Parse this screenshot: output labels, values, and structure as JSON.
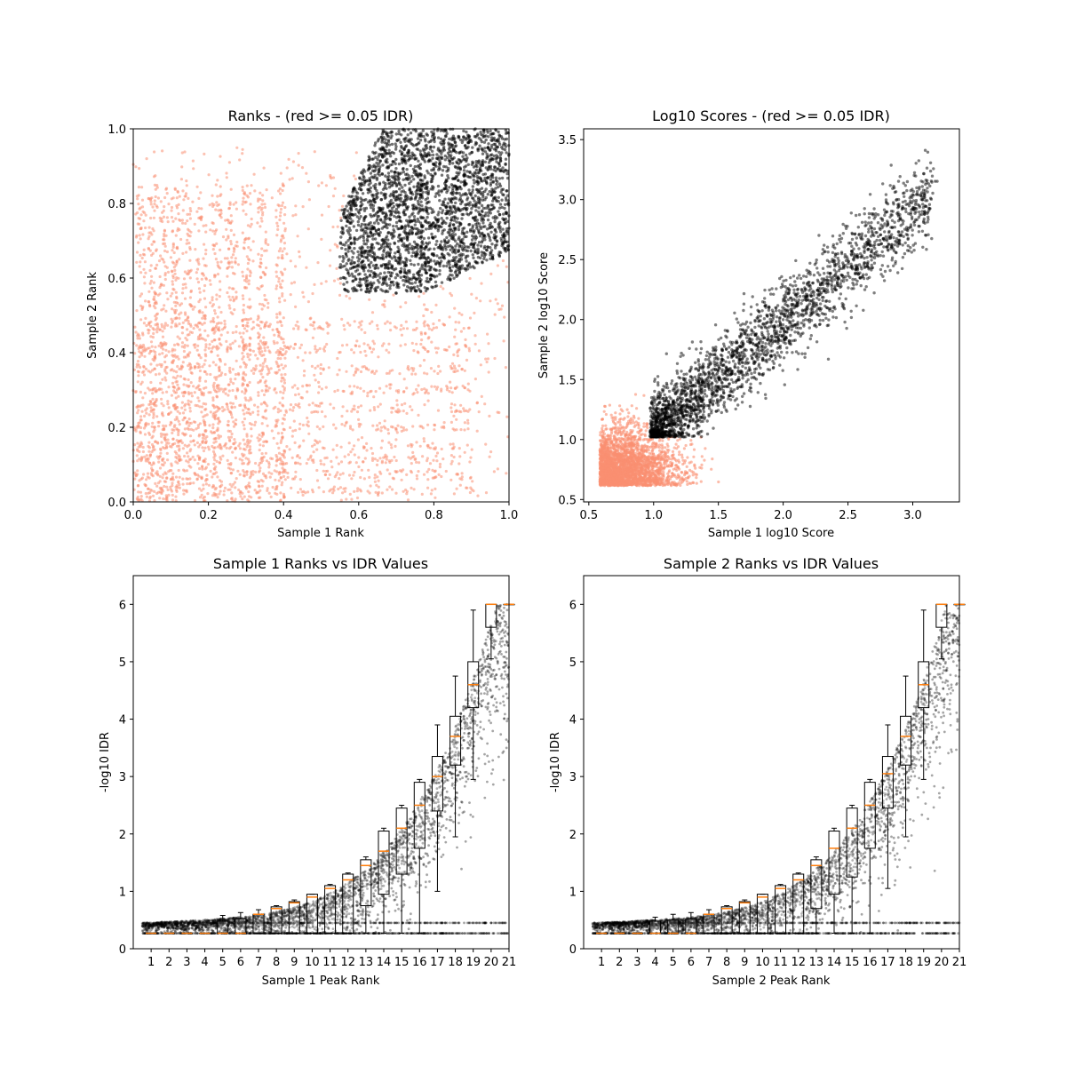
{
  "chart_data": [
    {
      "id": "ranks",
      "type": "scatter",
      "title": "Ranks - (red >= 0.05 IDR)",
      "xlabel": "Sample 1 Rank",
      "ylabel": "Sample 2 Rank",
      "xlim": [
        0.0,
        1.0
      ],
      "ylim": [
        0.0,
        1.0
      ],
      "xticks": [
        "0.0",
        "0.2",
        "0.4",
        "0.6",
        "0.8",
        "1.0"
      ],
      "yticks": [
        "0.0",
        "0.2",
        "0.4",
        "0.6",
        "0.8",
        "1.0"
      ],
      "series": [
        {
          "idr_group": "red >= 0.05 IDR",
          "color": "#fa8f72",
          "region": "below/left of curved boundary, uniform with grid banding"
        },
        {
          "idr_group": "passing",
          "color": "#000000",
          "region": "upper-right lobe, x 0.51-1.0, y 0.52-1.0"
        }
      ]
    },
    {
      "id": "scores",
      "type": "scatter",
      "title": "Log10 Scores - (red >= 0.05 IDR)",
      "xlabel": "Sample 1 log10 Score",
      "ylabel": "Sample 2 log10 Score",
      "xlim": [
        0.46,
        3.36
      ],
      "ylim": [
        0.48,
        3.59
      ],
      "xticks": [
        "0.5",
        "1.0",
        "1.5",
        "2.0",
        "2.5",
        "3.0"
      ],
      "yticks": [
        "0.5",
        "1.0",
        "1.5",
        "2.0",
        "2.5",
        "3.0",
        "3.5"
      ],
      "series": [
        {
          "idr_group": "red >= 0.05 IDR",
          "color": "#fa8f72",
          "region": "x 0.58-1.9, y 0.61-1.6"
        },
        {
          "idr_group": "passing",
          "color": "#000000",
          "region": "x 0.95-3.2, y 1.0-3.45"
        }
      ]
    },
    {
      "id": "s1idr",
      "type": "scatter",
      "title": "Sample 1 Ranks vs IDR Values",
      "xlabel": "Sample 1 Peak Rank",
      "ylabel": "-log10 IDR",
      "xlim": [
        0,
        21
      ],
      "ylim": [
        0,
        6.5
      ],
      "xticks": [
        "1",
        "2",
        "3",
        "4",
        "5",
        "6",
        "7",
        "8",
        "9",
        "10",
        "11",
        "12",
        "13",
        "14",
        "15",
        "16",
        "17",
        "18",
        "19",
        "20",
        "21"
      ],
      "yticks": [
        "0",
        "1",
        "2",
        "3",
        "4",
        "5",
        "6"
      ],
      "boxplots": [
        {
          "bin": 1,
          "med": 0.27,
          "q1": 0.27,
          "q3": 0.27,
          "wlo": 0.27,
          "whi": 0.27
        },
        {
          "bin": 2,
          "med": 0.27,
          "q1": 0.27,
          "q3": 0.27,
          "wlo": 0.27,
          "whi": 0.27
        },
        {
          "bin": 3,
          "med": 0.27,
          "q1": 0.27,
          "q3": 0.27,
          "wlo": 0.27,
          "whi": 0.27
        },
        {
          "bin": 4,
          "med": 0.27,
          "q1": 0.27,
          "q3": 0.27,
          "wlo": 0.27,
          "whi": 0.27
        },
        {
          "bin": 5,
          "med": 0.27,
          "q1": 0.27,
          "q3": 0.48,
          "wlo": 0.27,
          "whi": 0.58
        },
        {
          "bin": 6,
          "med": 0.27,
          "q1": 0.27,
          "q3": 0.52,
          "wlo": 0.27,
          "whi": 0.63
        },
        {
          "bin": 7,
          "med": 0.6,
          "q1": 0.27,
          "q3": 0.6,
          "wlo": 0.27,
          "whi": 0.68
        },
        {
          "bin": 8,
          "med": 0.7,
          "q1": 0.27,
          "q3": 0.73,
          "wlo": 0.27,
          "whi": 0.75
        },
        {
          "bin": 9,
          "med": 0.8,
          "q1": 0.27,
          "q3": 0.82,
          "wlo": 0.27,
          "whi": 0.85
        },
        {
          "bin": 10,
          "med": 0.9,
          "q1": 0.27,
          "q3": 0.95,
          "wlo": 0.27,
          "whi": 0.95
        },
        {
          "bin": 11,
          "med": 1.05,
          "q1": 0.27,
          "q3": 1.1,
          "wlo": 0.27,
          "whi": 1.12
        },
        {
          "bin": 12,
          "med": 1.2,
          "q1": 0.27,
          "q3": 1.3,
          "wlo": 0.27,
          "whi": 1.32
        },
        {
          "bin": 13,
          "med": 1.45,
          "q1": 0.75,
          "q3": 1.55,
          "wlo": 0.27,
          "whi": 1.6
        },
        {
          "bin": 14,
          "med": 1.7,
          "q1": 0.95,
          "q3": 2.05,
          "wlo": 0.27,
          "whi": 2.1
        },
        {
          "bin": 15,
          "med": 2.1,
          "q1": 1.3,
          "q3": 2.45,
          "wlo": 0.27,
          "whi": 2.5
        },
        {
          "bin": 16,
          "med": 2.5,
          "q1": 1.75,
          "q3": 2.9,
          "wlo": 0.27,
          "whi": 2.95
        },
        {
          "bin": 17,
          "med": 3.0,
          "q1": 2.4,
          "q3": 3.35,
          "wlo": 1.0,
          "whi": 3.9
        },
        {
          "bin": 18,
          "med": 3.7,
          "q1": 3.2,
          "q3": 4.05,
          "wlo": 1.95,
          "whi": 4.75
        },
        {
          "bin": 19,
          "med": 4.6,
          "q1": 4.2,
          "q3": 5.0,
          "wlo": 2.95,
          "whi": 5.9
        },
        {
          "bin": 20,
          "med": 6.0,
          "q1": 5.6,
          "q3": 6.0,
          "wlo": 5.05,
          "whi": 6.0
        },
        {
          "bin": 21,
          "med": 6.0,
          "q1": 6.0,
          "q3": 6.0,
          "wlo": 6.0,
          "whi": 6.0
        }
      ]
    },
    {
      "id": "s2idr",
      "type": "scatter",
      "title": "Sample 2 Ranks vs IDR Values",
      "xlabel": "Sample 2 Peak Rank",
      "ylabel": "-log10 IDR",
      "xlim": [
        0,
        21
      ],
      "ylim": [
        0,
        6.5
      ],
      "xticks": [
        "1",
        "2",
        "3",
        "4",
        "5",
        "6",
        "7",
        "8",
        "9",
        "10",
        "11",
        "12",
        "13",
        "14",
        "15",
        "16",
        "17",
        "18",
        "19",
        "20",
        "21"
      ],
      "yticks": [
        "0",
        "1",
        "2",
        "3",
        "4",
        "5",
        "6"
      ],
      "boxplots": [
        {
          "bin": 1,
          "med": 0.27,
          "q1": 0.27,
          "q3": 0.27,
          "wlo": 0.27,
          "whi": 0.27
        },
        {
          "bin": 2,
          "med": 0.27,
          "q1": 0.27,
          "q3": 0.27,
          "wlo": 0.27,
          "whi": 0.27
        },
        {
          "bin": 3,
          "med": 0.27,
          "q1": 0.27,
          "q3": 0.27,
          "wlo": 0.27,
          "whi": 0.27
        },
        {
          "bin": 4,
          "med": 0.27,
          "q1": 0.27,
          "q3": 0.48,
          "wlo": 0.27,
          "whi": 0.55
        },
        {
          "bin": 5,
          "med": 0.27,
          "q1": 0.27,
          "q3": 0.5,
          "wlo": 0.27,
          "whi": 0.6
        },
        {
          "bin": 6,
          "med": 0.27,
          "q1": 0.27,
          "q3": 0.52,
          "wlo": 0.27,
          "whi": 0.63
        },
        {
          "bin": 7,
          "med": 0.6,
          "q1": 0.27,
          "q3": 0.6,
          "wlo": 0.27,
          "whi": 0.68
        },
        {
          "bin": 8,
          "med": 0.7,
          "q1": 0.27,
          "q3": 0.73,
          "wlo": 0.27,
          "whi": 0.75
        },
        {
          "bin": 9,
          "med": 0.8,
          "q1": 0.27,
          "q3": 0.82,
          "wlo": 0.27,
          "whi": 0.85
        },
        {
          "bin": 10,
          "med": 0.9,
          "q1": 0.27,
          "q3": 0.95,
          "wlo": 0.27,
          "whi": 0.95
        },
        {
          "bin": 11,
          "med": 1.05,
          "q1": 0.27,
          "q3": 1.1,
          "wlo": 0.27,
          "whi": 1.12
        },
        {
          "bin": 12,
          "med": 1.2,
          "q1": 0.27,
          "q3": 1.3,
          "wlo": 0.27,
          "whi": 1.32
        },
        {
          "bin": 13,
          "med": 1.45,
          "q1": 0.7,
          "q3": 1.55,
          "wlo": 0.27,
          "whi": 1.6
        },
        {
          "bin": 14,
          "med": 1.75,
          "q1": 0.95,
          "q3": 2.05,
          "wlo": 0.27,
          "whi": 2.1
        },
        {
          "bin": 15,
          "med": 2.1,
          "q1": 1.25,
          "q3": 2.45,
          "wlo": 0.27,
          "whi": 2.5
        },
        {
          "bin": 16,
          "med": 2.5,
          "q1": 1.75,
          "q3": 2.9,
          "wlo": 0.27,
          "whi": 2.95
        },
        {
          "bin": 17,
          "med": 3.05,
          "q1": 2.45,
          "q3": 3.35,
          "wlo": 1.05,
          "whi": 3.9
        },
        {
          "bin": 18,
          "med": 3.7,
          "q1": 3.2,
          "q3": 4.05,
          "wlo": 1.95,
          "whi": 4.75
        },
        {
          "bin": 19,
          "med": 4.6,
          "q1": 4.2,
          "q3": 5.0,
          "wlo": 2.95,
          "whi": 5.9
        },
        {
          "bin": 20,
          "med": 6.0,
          "q1": 5.6,
          "q3": 6.0,
          "wlo": 5.05,
          "whi": 6.0
        },
        {
          "bin": 21,
          "med": 6.0,
          "q1": 6.0,
          "q3": 6.0,
          "wlo": 6.0,
          "whi": 6.0
        }
      ]
    }
  ]
}
